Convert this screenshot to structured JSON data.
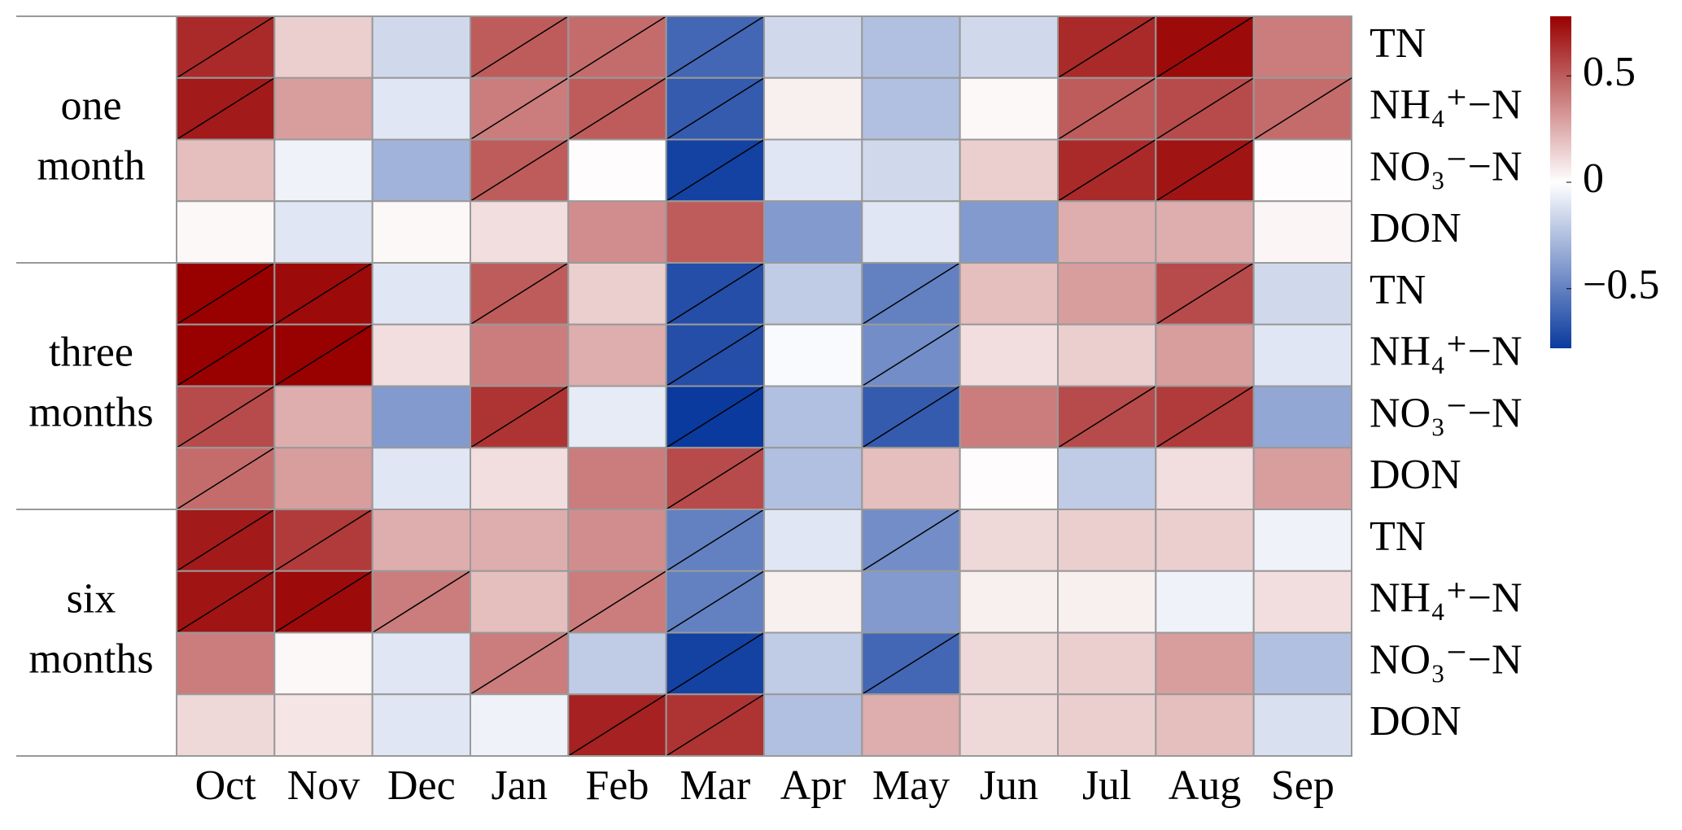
{
  "chart_data": {
    "type": "heatmap",
    "categories": [
      "Oct",
      "Nov",
      "Dec",
      "Jan",
      "Feb",
      "Mar",
      "Apr",
      "May",
      "Jun",
      "Jul",
      "Aug",
      "Sep"
    ],
    "rows": [
      "TN",
      "NH₄⁺−N",
      "NO₃⁻−N",
      "DON",
      "TN",
      "NH₄⁺−N",
      "NO₃⁻−N",
      "DON",
      "TN",
      "NH₄⁺−N",
      "NO₃⁻−N",
      "DON"
    ],
    "groups": [
      [
        "one",
        "month"
      ],
      [
        "three",
        "months"
      ],
      [
        "six",
        "months"
      ]
    ],
    "values": [
      [
        0.65,
        0.15,
        -0.15,
        0.5,
        0.45,
        -0.6,
        -0.15,
        -0.25,
        -0.15,
        0.65,
        0.75,
        0.4
      ],
      [
        0.7,
        0.3,
        -0.1,
        0.4,
        0.5,
        -0.65,
        0.05,
        -0.25,
        0.02,
        0.5,
        0.55,
        0.45
      ],
      [
        0.2,
        -0.05,
        -0.3,
        0.5,
        0.01,
        -0.75,
        -0.1,
        -0.15,
        0.15,
        0.65,
        0.72,
        0.01
      ],
      [
        0.02,
        -0.1,
        0.02,
        0.1,
        0.35,
        0.5,
        -0.4,
        -0.1,
        -0.4,
        0.25,
        0.25,
        0.03
      ],
      [
        0.78,
        0.75,
        -0.1,
        0.5,
        0.15,
        -0.7,
        -0.2,
        -0.5,
        0.2,
        0.3,
        0.55,
        -0.15
      ],
      [
        0.78,
        0.78,
        0.1,
        0.4,
        0.25,
        -0.7,
        -0.02,
        -0.45,
        0.1,
        0.15,
        0.3,
        -0.1
      ],
      [
        0.55,
        0.25,
        -0.4,
        0.62,
        -0.08,
        -0.78,
        -0.25,
        -0.65,
        0.4,
        0.55,
        0.6,
        -0.35
      ],
      [
        0.45,
        0.3,
        -0.1,
        0.1,
        0.4,
        0.55,
        -0.25,
        0.2,
        0.01,
        -0.2,
        0.1,
        0.3
      ],
      [
        0.7,
        0.6,
        0.25,
        0.25,
        0.35,
        -0.5,
        -0.1,
        -0.45,
        0.12,
        0.15,
        0.15,
        -0.05
      ],
      [
        0.72,
        0.75,
        0.4,
        0.2,
        0.4,
        -0.5,
        0.05,
        -0.4,
        0.05,
        0.05,
        -0.05,
        0.1
      ],
      [
        0.4,
        0.02,
        -0.1,
        0.4,
        -0.2,
        -0.75,
        -0.2,
        -0.6,
        0.12,
        0.15,
        0.3,
        -0.25
      ],
      [
        0.12,
        0.08,
        -0.1,
        -0.05,
        0.68,
        0.62,
        -0.25,
        0.25,
        0.12,
        0.15,
        0.2,
        -0.12
      ]
    ],
    "significant": [
      [
        true,
        false,
        false,
        true,
        true,
        true,
        false,
        false,
        false,
        true,
        true,
        false
      ],
      [
        true,
        false,
        false,
        true,
        true,
        true,
        false,
        false,
        false,
        true,
        true,
        true
      ],
      [
        false,
        false,
        false,
        true,
        false,
        true,
        false,
        false,
        false,
        true,
        true,
        false
      ],
      [
        false,
        false,
        false,
        false,
        false,
        false,
        false,
        false,
        false,
        false,
        false,
        false
      ],
      [
        true,
        true,
        false,
        true,
        false,
        true,
        false,
        true,
        false,
        false,
        true,
        false
      ],
      [
        true,
        true,
        false,
        false,
        false,
        true,
        false,
        true,
        false,
        false,
        false,
        false
      ],
      [
        true,
        false,
        false,
        true,
        false,
        true,
        false,
        true,
        false,
        true,
        true,
        false
      ],
      [
        true,
        false,
        false,
        false,
        false,
        true,
        false,
        false,
        false,
        false,
        false,
        false
      ],
      [
        true,
        true,
        false,
        false,
        false,
        true,
        false,
        true,
        false,
        false,
        false,
        false
      ],
      [
        true,
        true,
        true,
        false,
        true,
        true,
        false,
        false,
        false,
        false,
        false,
        false
      ],
      [
        false,
        false,
        false,
        true,
        false,
        true,
        false,
        true,
        false,
        false,
        false,
        false
      ],
      [
        false,
        false,
        false,
        false,
        true,
        true,
        false,
        false,
        false,
        false,
        false,
        false
      ]
    ],
    "colormap": [
      "#0b3a9e",
      "#ffffff",
      "#990000"
    ],
    "clim": [
      -0.78,
      0.78
    ],
    "cticks": [
      {
        "value": -0.5,
        "label": "−0.5"
      },
      0,
      0.5
    ]
  }
}
